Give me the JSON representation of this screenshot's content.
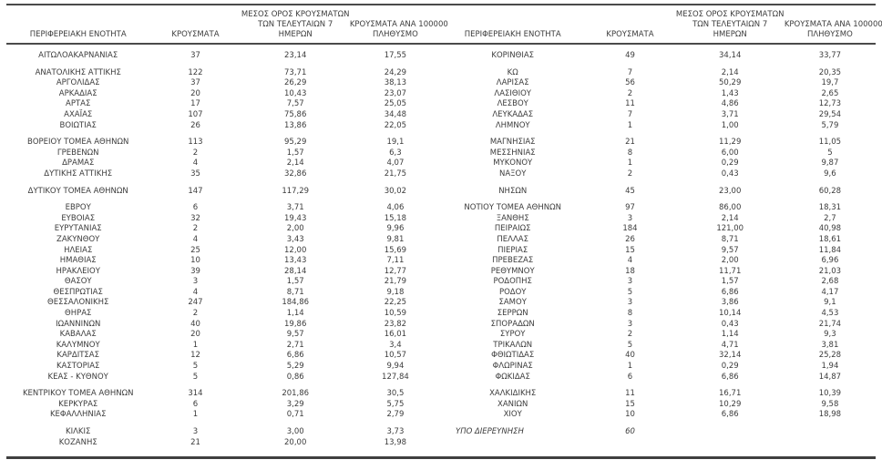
{
  "page": {
    "background": "#ffffff",
    "text_color": "#3c3c3c",
    "rule_color": "#4a4a4a"
  },
  "column_headers": {
    "region": "ΠΕΡΙΦΕΡΕΙΑΚΗ ΕΝΟΤΗΤΑ",
    "cases": "ΚΡΟΥΣΜΑΤΑ",
    "avg7_lines": [
      "ΜΕΣΟΣ ΟΡΟΣ ΚΡΟΥΣΜΑΤΩΝ",
      "ΤΩΝ ΤΕΛΕΥΤΑΙΩΝ 7",
      "ΗΜΕΡΩΝ"
    ],
    "per100k_lines": [
      "ΚΡΟΥΣΜΑΤΑ ΑΝΑ 100000",
      "ΠΛΗΘΥΣΜΟ"
    ]
  },
  "tables": [
    {
      "id": "left",
      "groups": [
        {
          "rows": [
            {
              "region": "ΑΙΤΩΛΟΑΚΑΡΝΑΝΙΑΣ",
              "cases": "37",
              "avg7": "23,14",
              "per100k": "17,55"
            }
          ]
        },
        {
          "rows": [
            {
              "region": "ΑΝΑΤΟΛΙΚΗΣ ΑΤΤΙΚΗΣ",
              "cases": "122",
              "avg7": "73,71",
              "per100k": "24,29"
            },
            {
              "region": "ΑΡΓΟΛΙΔΑΣ",
              "cases": "37",
              "avg7": "26,29",
              "per100k": "38,13"
            },
            {
              "region": "ΑΡΚΑΔΙΑΣ",
              "cases": "20",
              "avg7": "10,43",
              "per100k": "23,07"
            },
            {
              "region": "ΑΡΤΑΣ",
              "cases": "17",
              "avg7": "7,57",
              "per100k": "25,05"
            },
            {
              "region": "ΑΧΑΪΑΣ",
              "cases": "107",
              "avg7": "75,86",
              "per100k": "34,48"
            },
            {
              "region": "ΒΟΙΩΤΙΑΣ",
              "cases": "26",
              "avg7": "13,86",
              "per100k": "22,05"
            }
          ]
        },
        {
          "rows": [
            {
              "region": "ΒΟΡΕΙΟΥ ΤΟΜΕΑ ΑΘΗΝΩΝ",
              "cases": "113",
              "avg7": "95,29",
              "per100k": "19,1"
            },
            {
              "region": "ΓΡΕΒΕΝΩΝ",
              "cases": "2",
              "avg7": "1,57",
              "per100k": "6,3"
            },
            {
              "region": "ΔΡΑΜΑΣ",
              "cases": "4",
              "avg7": "2,14",
              "per100k": "4,07"
            },
            {
              "region": "ΔΥΤΙΚΗΣ ΑΤΤΙΚΗΣ",
              "cases": "35",
              "avg7": "32,86",
              "per100k": "21,75"
            }
          ]
        },
        {
          "rows": [
            {
              "region": "ΔΥΤΙΚΟΥ ΤΟΜΕΑ ΑΘΗΝΩΝ",
              "cases": "147",
              "avg7": "117,29",
              "per100k": "30,02"
            }
          ]
        },
        {
          "rows": [
            {
              "region": "ΕΒΡΟΥ",
              "cases": "6",
              "avg7": "3,71",
              "per100k": "4,06"
            },
            {
              "region": "ΕΥΒΟΙΑΣ",
              "cases": "32",
              "avg7": "19,43",
              "per100k": "15,18"
            },
            {
              "region": "ΕΥΡΥΤΑΝΙΑΣ",
              "cases": "2",
              "avg7": "2,00",
              "per100k": "9,96"
            },
            {
              "region": "ΖΑΚΥΝΘΟΥ",
              "cases": "4",
              "avg7": "3,43",
              "per100k": "9,81"
            },
            {
              "region": "ΗΛΕΙΑΣ",
              "cases": "25",
              "avg7": "12,00",
              "per100k": "15,69"
            },
            {
              "region": "ΗΜΑΘΙΑΣ",
              "cases": "10",
              "avg7": "13,43",
              "per100k": "7,11"
            },
            {
              "region": "ΗΡΑΚΛΕΙΟΥ",
              "cases": "39",
              "avg7": "28,14",
              "per100k": "12,77"
            },
            {
              "region": "ΘΑΣΟΥ",
              "cases": "3",
              "avg7": "1,57",
              "per100k": "21,79"
            },
            {
              "region": "ΘΕΣΠΡΩΤΙΑΣ",
              "cases": "4",
              "avg7": "8,71",
              "per100k": "9,18"
            },
            {
              "region": "ΘΕΣΣΑΛΟΝΙΚΗΣ",
              "cases": "247",
              "avg7": "184,86",
              "per100k": "22,25"
            },
            {
              "region": "ΘΗΡΑΣ",
              "cases": "2",
              "avg7": "1,14",
              "per100k": "10,59"
            },
            {
              "region": "ΙΩΑΝΝΙΝΩΝ",
              "cases": "40",
              "avg7": "19,86",
              "per100k": "23,82"
            },
            {
              "region": "ΚΑΒΑΛΑΣ",
              "cases": "20",
              "avg7": "9,57",
              "per100k": "16,01"
            },
            {
              "region": "ΚΑΛΥΜΝΟΥ",
              "cases": "1",
              "avg7": "2,71",
              "per100k": "3,4"
            },
            {
              "region": "ΚΑΡΔΙΤΣΑΣ",
              "cases": "12",
              "avg7": "6,86",
              "per100k": "10,57"
            },
            {
              "region": "ΚΑΣΤΟΡΙΑΣ",
              "cases": "5",
              "avg7": "5,29",
              "per100k": "9,94"
            },
            {
              "region": "ΚΕΑΣ - ΚΥΘΝΟΥ",
              "cases": "5",
              "avg7": "0,86",
              "per100k": "127,84"
            }
          ]
        },
        {
          "rows": [
            {
              "region": "ΚΕΝΤΡΙΚΟΥ ΤΟΜΕΑ ΑΘΗΝΩΝ",
              "cases": "314",
              "avg7": "201,86",
              "per100k": "30,5"
            },
            {
              "region": "ΚΕΡΚΥΡΑΣ",
              "cases": "6",
              "avg7": "3,29",
              "per100k": "5,75"
            },
            {
              "region": "ΚΕΦΑΛΛΗΝΙΑΣ",
              "cases": "1",
              "avg7": "0,71",
              "per100k": "2,79"
            }
          ]
        },
        {
          "rows": [
            {
              "region": "ΚΙΛΚΙΣ",
              "cases": "3",
              "avg7": "3,00",
              "per100k": "3,73"
            },
            {
              "region": "ΚΟΖΑΝΗΣ",
              "cases": "21",
              "avg7": "20,00",
              "per100k": "13,98"
            }
          ]
        }
      ]
    },
    {
      "id": "right",
      "groups": [
        {
          "rows": [
            {
              "region": "ΚΟΡΙΝΘΙΑΣ",
              "cases": "49",
              "avg7": "34,14",
              "per100k": "33,77"
            }
          ]
        },
        {
          "rows": [
            {
              "region": "ΚΩ",
              "cases": "7",
              "avg7": "2,14",
              "per100k": "20,35"
            },
            {
              "region": "ΛΑΡΙΣΑΣ",
              "cases": "56",
              "avg7": "50,29",
              "per100k": "19,7"
            },
            {
              "region": "ΛΑΣΙΘΙΟΥ",
              "cases": "2",
              "avg7": "1,43",
              "per100k": "2,65"
            },
            {
              "region": "ΛΕΣΒΟΥ",
              "cases": "11",
              "avg7": "4,86",
              "per100k": "12,73"
            },
            {
              "region": "ΛΕΥΚΑΔΑΣ",
              "cases": "7",
              "avg7": "3,71",
              "per100k": "29,54"
            },
            {
              "region": "ΛΗΜΝΟΥ",
              "cases": "1",
              "avg7": "1,00",
              "per100k": "5,79"
            }
          ]
        },
        {
          "rows": [
            {
              "region": "ΜΑΓΝΗΣΙΑΣ",
              "cases": "21",
              "avg7": "11,29",
              "per100k": "11,05"
            },
            {
              "region": "ΜΕΣΣΗΝΙΑΣ",
              "cases": "8",
              "avg7": "6,00",
              "per100k": "5"
            },
            {
              "region": "ΜΥΚΟΝΟΥ",
              "cases": "1",
              "avg7": "0,29",
              "per100k": "9,87"
            },
            {
              "region": "ΝΑΞΟΥ",
              "cases": "2",
              "avg7": "0,43",
              "per100k": "9,6"
            }
          ]
        },
        {
          "rows": [
            {
              "region": "ΝΗΣΩΝ",
              "cases": "45",
              "avg7": "23,00",
              "per100k": "60,28"
            }
          ]
        },
        {
          "rows": [
            {
              "region": "ΝΟΤΙΟΥ ΤΟΜΕΑ ΑΘΗΝΩΝ",
              "cases": "97",
              "avg7": "86,00",
              "per100k": "18,31"
            },
            {
              "region": "ΞΑΝΘΗΣ",
              "cases": "3",
              "avg7": "2,14",
              "per100k": "2,7"
            },
            {
              "region": "ΠΕΙΡΑΙΩΣ",
              "cases": "184",
              "avg7": "121,00",
              "per100k": "40,98"
            },
            {
              "region": "ΠΕΛΛΑΣ",
              "cases": "26",
              "avg7": "8,71",
              "per100k": "18,61"
            },
            {
              "region": "ΠΙΕΡΙΑΣ",
              "cases": "15",
              "avg7": "9,57",
              "per100k": "11,84"
            },
            {
              "region": "ΠΡΕΒΕΖΑΣ",
              "cases": "4",
              "avg7": "2,00",
              "per100k": "6,96"
            },
            {
              "region": "ΡΕΘΥΜΝΟΥ",
              "cases": "18",
              "avg7": "11,71",
              "per100k": "21,03"
            },
            {
              "region": "ΡΟΔΟΠΗΣ",
              "cases": "3",
              "avg7": "1,57",
              "per100k": "2,68"
            },
            {
              "region": "ΡΟΔΟΥ",
              "cases": "5",
              "avg7": "6,86",
              "per100k": "4,17"
            },
            {
              "region": "ΣΑΜΟΥ",
              "cases": "3",
              "avg7": "3,86",
              "per100k": "9,1"
            },
            {
              "region": "ΣΕΡΡΩΝ",
              "cases": "8",
              "avg7": "10,14",
              "per100k": "4,53"
            },
            {
              "region": "ΣΠΟΡΑΔΩΝ",
              "cases": "3",
              "avg7": "0,43",
              "per100k": "21,74"
            },
            {
              "region": "ΣΥΡΟΥ",
              "cases": "2",
              "avg7": "1,14",
              "per100k": "9,3"
            },
            {
              "region": "ΤΡΙΚΑΛΩΝ",
              "cases": "5",
              "avg7": "4,71",
              "per100k": "3,81"
            },
            {
              "region": "ΦΘΙΩΤΙΔΑΣ",
              "cases": "40",
              "avg7": "32,14",
              "per100k": "25,28"
            },
            {
              "region": "ΦΛΩΡΙΝΑΣ",
              "cases": "1",
              "avg7": "0,29",
              "per100k": "1,94"
            },
            {
              "region": "ΦΩΚΙΔΑΣ",
              "cases": "6",
              "avg7": "6,86",
              "per100k": "14,87"
            }
          ]
        },
        {
          "rows": [
            {
              "region": "ΧΑΛΚΙΔΙΚΗΣ",
              "cases": "11",
              "avg7": "16,71",
              "per100k": "10,39"
            },
            {
              "region": "ΧΑΝΙΩΝ",
              "cases": "15",
              "avg7": "10,29",
              "per100k": "9,58"
            },
            {
              "region": "ΧΙΟΥ",
              "cases": "10",
              "avg7": "6,86",
              "per100k": "18,98"
            }
          ]
        },
        {
          "rows": [
            {
              "region": "ΥΠΟ ΔΙΕΡΕΥΝΗΣΗ",
              "cases": "60",
              "avg7": "",
              "per100k": "",
              "italic": true,
              "align_left": true
            }
          ]
        }
      ]
    }
  ]
}
